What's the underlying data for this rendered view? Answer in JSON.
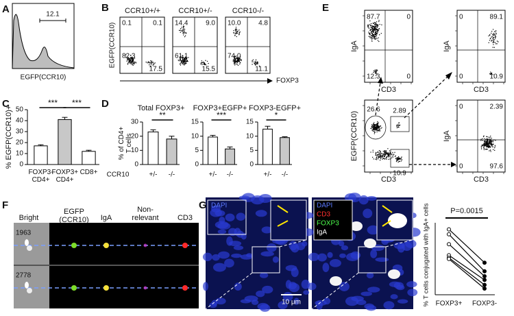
{
  "panel_labels": [
    "A",
    "B",
    "C",
    "D",
    "E",
    "F",
    "G"
  ],
  "panel_a": {
    "gate_value": "12.1",
    "x_label": "EGFP(CCR10)"
  },
  "panel_b": {
    "columns": [
      "CCR10+/+",
      "CCR10+/-",
      "CCR10-/-"
    ],
    "y_label": "EGFP(CCR10)",
    "x_label": "FOXP3",
    "quadrants": [
      [
        "0.1",
        "0.1",
        "82.3",
        "17.5"
      ],
      [
        "14.4",
        "9.0",
        "61.1",
        "15.5"
      ],
      [
        "10.0",
        "4.8",
        "74.0",
        "11.1"
      ]
    ]
  },
  "panel_e": {
    "plots": [
      {
        "y_label": "IgA",
        "x_label": "CD3",
        "gates": [
          "87.7",
          "0",
          "12.3",
          "0"
        ]
      },
      {
        "y_label": "IgA",
        "x_label": "CD3",
        "gates": [
          "0",
          "89.1",
          "0",
          "10.9"
        ]
      },
      {
        "y_label": "EGFP(CCR10)",
        "x_label": "CD3",
        "gates": [
          "26.6",
          "2.89",
          "10.9"
        ]
      },
      {
        "y_label": "IgA",
        "x_label": "CD3",
        "gates": [
          "0",
          "2.39",
          "0",
          "97.6"
        ]
      }
    ]
  },
  "panel_f": {
    "columns": [
      "Bright",
      "EGFP (CCR10)",
      "IgA",
      "Non-relevant",
      "CD3"
    ],
    "rows": [
      "1963",
      "2778"
    ]
  },
  "panel_g": {
    "left_labels": [
      "DAPI"
    ],
    "right_labels": [
      "DAPI",
      "CD3",
      "FOXP3",
      "IgA"
    ],
    "scale_bar": "10 μm"
  },
  "chart_data": [
    {
      "type": "bar",
      "y_label": "% EGFP(CCR10)+",
      "categories": [
        "FOXP3- CD4+",
        "FOXP3+ CD4+",
        "CD8+"
      ],
      "values": [
        17,
        41,
        12
      ],
      "errors": [
        1,
        2,
        1
      ],
      "colors": [
        "#ffffff",
        "#c8c8c8",
        "#ffffff"
      ],
      "ylim": [
        0,
        50
      ],
      "yticks": [
        0,
        10,
        20,
        30,
        40,
        50
      ],
      "significance": [
        "***",
        "***"
      ]
    },
    {
      "type": "bar",
      "title": "Total FOXP3+",
      "y_label": "% of CD4+ T cells",
      "x_label": "CCR10",
      "categories": [
        "+/-",
        "-/-"
      ],
      "values": [
        23,
        18
      ],
      "errors": [
        1.5,
        2
      ],
      "colors": [
        "#ffffff",
        "#c8c8c8"
      ],
      "ylim": [
        0,
        30
      ],
      "yticks": [
        0,
        10,
        20,
        30
      ],
      "significance": [
        "**"
      ]
    },
    {
      "type": "bar",
      "title": "FOXP3+EGFP+",
      "categories": [
        "+/-",
        "-/-"
      ],
      "values": [
        9.7,
        5.5
      ],
      "errors": [
        0.6,
        0.7
      ],
      "colors": [
        "#ffffff",
        "#c8c8c8"
      ],
      "ylim": [
        0,
        15
      ],
      "yticks": [
        0,
        5,
        10,
        15
      ],
      "significance": [
        "***"
      ]
    },
    {
      "type": "bar",
      "title": "FOXP3-EGFP+",
      "categories": [
        "+/-",
        "-/-"
      ],
      "values": [
        12.5,
        9.5
      ],
      "errors": [
        1,
        0.3
      ],
      "colors": [
        "#ffffff",
        "#c8c8c8"
      ],
      "ylim": [
        0,
        15
      ],
      "yticks": [
        0,
        5,
        10,
        15
      ],
      "significance": [
        "*"
      ]
    },
    {
      "type": "line",
      "y_label": "% T cells conjugated with IgA+ cells",
      "annotation": "P=0.0015",
      "categories": [
        "FOXP3+",
        "FOXP3-"
      ],
      "ylim": [
        0,
        60
      ],
      "series": [
        {
          "color": "#000000",
          "values": [
            53,
            26
          ]
        },
        {
          "color": "#000000",
          "values": [
            49,
            19
          ]
        },
        {
          "color": "#000000",
          "values": [
            41,
            15
          ]
        },
        {
          "color": "#000000",
          "values": [
            32,
            12
          ]
        },
        {
          "color": "#000000",
          "values": [
            30,
            8
          ]
        },
        {
          "color": "#000000",
          "values": [
            29,
            5
          ]
        }
      ]
    }
  ]
}
